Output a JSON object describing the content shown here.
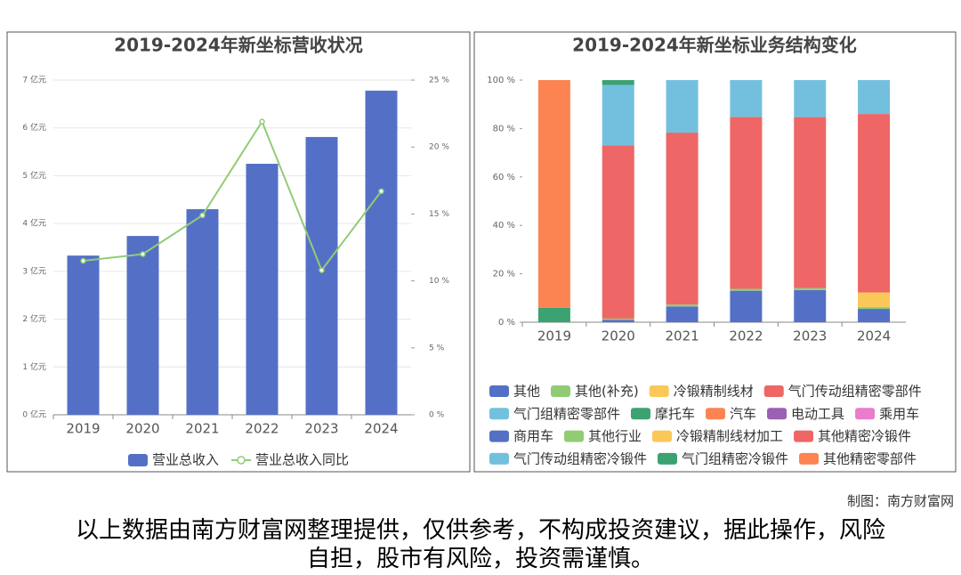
{
  "chart_data": [
    {
      "type": "bar",
      "title": "2019-2024年新坐标营收状况",
      "categories": [
        "2019",
        "2020",
        "2021",
        "2022",
        "2023",
        "2024"
      ],
      "series": [
        {
          "name": "营业总收入",
          "color": "#5470c6",
          "type": "bar",
          "values": [
            3.33,
            3.74,
            4.3,
            5.25,
            5.81,
            6.78
          ]
        },
        {
          "name": "营业总收入同比",
          "color": "#91cc75",
          "type": "line",
          "axis": "y2",
          "values": [
            11.5,
            12.0,
            14.9,
            21.9,
            10.8,
            16.7
          ]
        }
      ],
      "ylim": [
        0,
        7
      ],
      "yticks": [
        {
          "value": 0,
          "label": "0 亿元"
        },
        {
          "value": 1,
          "label": "1 亿元"
        },
        {
          "value": 2,
          "label": "2 亿元"
        },
        {
          "value": 3,
          "label": "3 亿元"
        },
        {
          "value": 4,
          "label": "4 亿元"
        },
        {
          "value": 5,
          "label": "5 亿元"
        },
        {
          "value": 6,
          "label": "6 亿元"
        },
        {
          "value": 7,
          "label": "7 亿元"
        }
      ],
      "y2lim": [
        0,
        25
      ],
      "y2ticks": [
        {
          "value": 0,
          "label": "0 %"
        },
        {
          "value": 5,
          "label": "5 %"
        },
        {
          "value": 10,
          "label": "10 %"
        },
        {
          "value": 15,
          "label": "15 %"
        },
        {
          "value": 20,
          "label": "20 %"
        },
        {
          "value": 25,
          "label": "25 %"
        }
      ],
      "grid": true,
      "legend": "bottom"
    },
    {
      "type": "stacked_bar",
      "title": "2019-2024年新坐标业务结构变化",
      "categories": [
        "2019",
        "2020",
        "2021",
        "2022",
        "2023",
        "2024"
      ],
      "series": [
        {
          "name": "其他",
          "color": "#5470c6",
          "values": [
            null,
            1.0,
            6.5,
            13.0,
            13.3,
            5.5
          ]
        },
        {
          "name": "其他(补充)",
          "color": "#91cc75",
          "values": [
            null,
            0.5,
            0.8,
            0.8,
            0.8,
            0.8
          ]
        },
        {
          "name": "冷锻精制线材",
          "color": "#fac858",
          "values": [
            null,
            null,
            null,
            null,
            null,
            6.0
          ]
        },
        {
          "name": "气门传动组精密零部件",
          "color": "#ee6666",
          "values": [
            null,
            71.5,
            71.0,
            71.0,
            70.6,
            73.7
          ]
        },
        {
          "name": "气门组精密零部件",
          "color": "#73c0de",
          "values": [
            null,
            25.0,
            21.7,
            15.2,
            15.3,
            14.0
          ]
        },
        {
          "name": "摩托车",
          "color": "#3ba272",
          "values": [
            5.9,
            2.0,
            null,
            null,
            null,
            null
          ]
        },
        {
          "name": "汽车",
          "color": "#fc8452",
          "values": [
            94.1,
            null,
            null,
            null,
            null,
            null
          ]
        },
        {
          "name": "电动工具",
          "color": "#9a60b4",
          "values": [
            null,
            null,
            null,
            null,
            null,
            null
          ]
        },
        {
          "name": "乘用车",
          "color": "#ea7ccc",
          "values": [
            null,
            null,
            null,
            null,
            null,
            null
          ]
        },
        {
          "name": "商用车",
          "color": "#5470c6",
          "values": [
            null,
            null,
            null,
            null,
            null,
            null
          ]
        },
        {
          "name": "其他行业",
          "color": "#91cc75",
          "values": [
            null,
            null,
            null,
            null,
            null,
            null
          ]
        },
        {
          "name": "冷锻精制线材加工",
          "color": "#fac858",
          "values": [
            null,
            null,
            null,
            null,
            null,
            null
          ]
        },
        {
          "name": "其他精密冷锻件",
          "color": "#ee6666",
          "values": [
            null,
            null,
            null,
            null,
            null,
            null
          ]
        },
        {
          "name": "气门传动组精密冷锻件",
          "color": "#73c0de",
          "values": [
            null,
            null,
            null,
            null,
            null,
            null
          ]
        },
        {
          "name": "气门组精密冷锻件",
          "color": "#3ba272",
          "values": [
            null,
            null,
            null,
            null,
            null,
            null
          ]
        },
        {
          "name": "其他精密零部件",
          "color": "#fc8452",
          "values": [
            null,
            null,
            null,
            null,
            null,
            null
          ]
        }
      ],
      "ylim": [
        0,
        100
      ],
      "yticks": [
        {
          "value": 0,
          "label": "0 %"
        },
        {
          "value": 20,
          "label": "20 %"
        },
        {
          "value": 40,
          "label": "40 %"
        },
        {
          "value": 60,
          "label": "60 %"
        },
        {
          "value": 80,
          "label": "80 %"
        },
        {
          "value": 100,
          "label": "100 %"
        }
      ],
      "grid": false,
      "legend": "bottom"
    }
  ],
  "credit": "制图：南方财富网",
  "disclaimer": "以上数据由南方财富网整理提供，仅供参考，不构成投资建议，据此操作，风险自担，股市有风险，投资需谨慎。"
}
